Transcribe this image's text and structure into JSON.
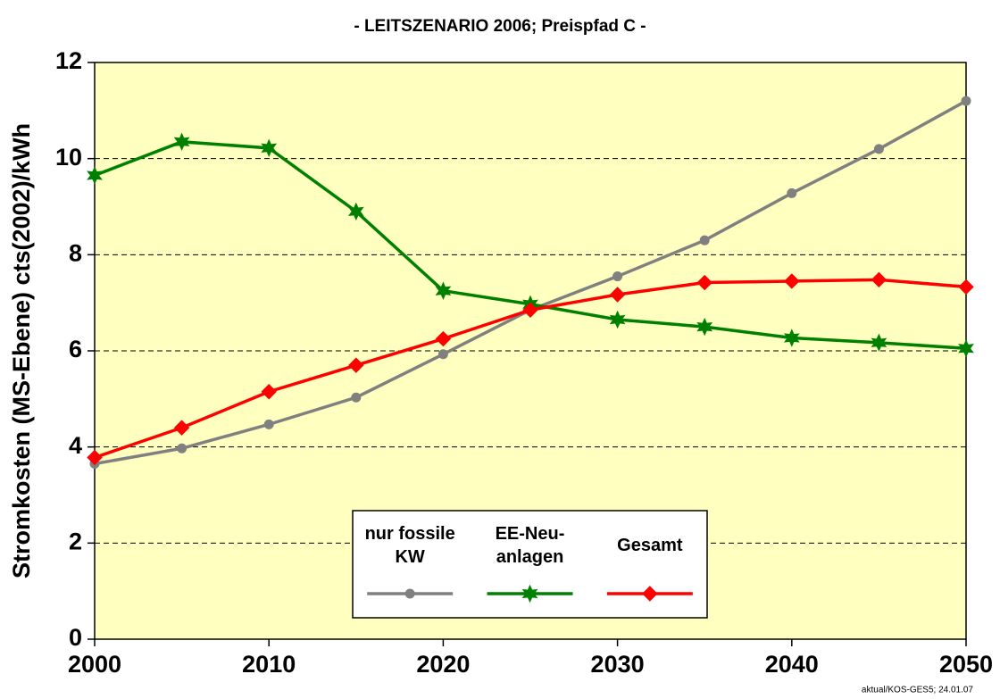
{
  "chart_data": {
    "type": "line",
    "title": "- LEITSZENARIO 2006; Preispfad C  -",
    "y_label": "Stromkosten (MS-Ebene) cts(2002)/kWh",
    "footnote": "aktual/KOS-GES5; 24.01.07",
    "x": [
      2000,
      2005,
      2010,
      2015,
      2020,
      2025,
      2030,
      2035,
      2040,
      2045,
      2050
    ],
    "xlim": [
      2000,
      2050
    ],
    "xticks": [
      2000,
      2010,
      2020,
      2030,
      2040,
      2050
    ],
    "ylim": [
      0,
      12
    ],
    "yticks": [
      0,
      2,
      4,
      6,
      8,
      10,
      12
    ],
    "grid": true,
    "background": "#ffffc0",
    "series": [
      {
        "name": "nur fossile KW",
        "color": "#808080",
        "marker": "circle",
        "values": [
          3.65,
          3.97,
          4.47,
          5.03,
          5.93,
          6.85,
          7.55,
          8.3,
          9.28,
          10.2,
          11.2
        ]
      },
      {
        "name": "EE-Neu-anlagen",
        "color": "#008000",
        "marker": "star",
        "values": [
          9.65,
          10.35,
          10.22,
          8.9,
          7.25,
          6.97,
          6.65,
          6.5,
          6.27,
          6.17,
          6.05
        ]
      },
      {
        "name": "Gesamt",
        "color": "#ff0000",
        "marker": "diamond",
        "values": [
          3.78,
          4.4,
          5.15,
          5.7,
          6.25,
          6.85,
          7.17,
          7.42,
          7.45,
          7.48,
          7.33
        ]
      }
    ]
  }
}
